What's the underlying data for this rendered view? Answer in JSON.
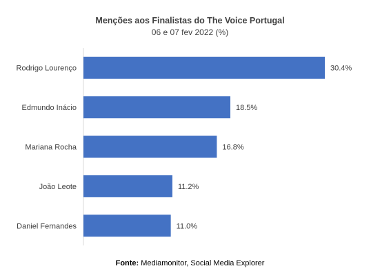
{
  "chart_data": {
    "type": "bar",
    "orientation": "horizontal",
    "title": "Menções aos Finalistas do The Voice Portugal",
    "subtitle": "06 e 07 fev 2022 (%)",
    "categories": [
      "Rodrigo Lourenço",
      "Edmundo Inácio",
      "Mariana Rocha",
      "João Leote",
      "Daniel Fernandes"
    ],
    "values": [
      30.4,
      18.5,
      16.8,
      11.2,
      11.0
    ],
    "value_labels": [
      "30.4%",
      "18.5%",
      "16.8%",
      "11.2%",
      "11.0%"
    ],
    "xlim": [
      0,
      32
    ],
    "grid": false,
    "bar_color": "#4472C4"
  },
  "source": {
    "label": "Fonte:",
    "text": " Mediamonitor, Social Media Explorer"
  }
}
